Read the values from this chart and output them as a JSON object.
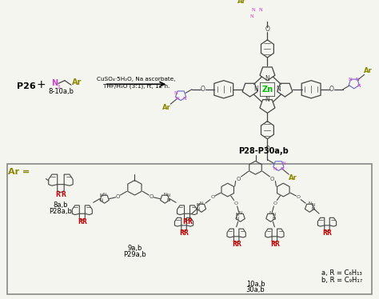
{
  "bg_color": "#f5f5f0",
  "body_color": "#444444",
  "n_color": "#cc44cc",
  "zn_color": "#00bb00",
  "ar_color": "#888800",
  "r_color": "#cc0000",
  "triazole_color": "#6666cc",
  "box_edge_color": "#888888",
  "reagents1": "CuSO₄·5H₂O, Na ascorbate,",
  "reagents2": "THF/H₂O (3:1), rt, 12 h.",
  "p26": "P26",
  "azide_label": "8-10a,b",
  "product_label": "P28-P30a,b",
  "label_8ab": "8a,b",
  "label_P28ab": "P28a,b",
  "label_9ab": "9a,b",
  "label_P29ab": "P29a,b",
  "label_10ab": "10a,b",
  "label_30ab": "30a,b",
  "note_a": "a, R = C₆H₁₃",
  "note_b": "b, R = C₉H₁₇"
}
